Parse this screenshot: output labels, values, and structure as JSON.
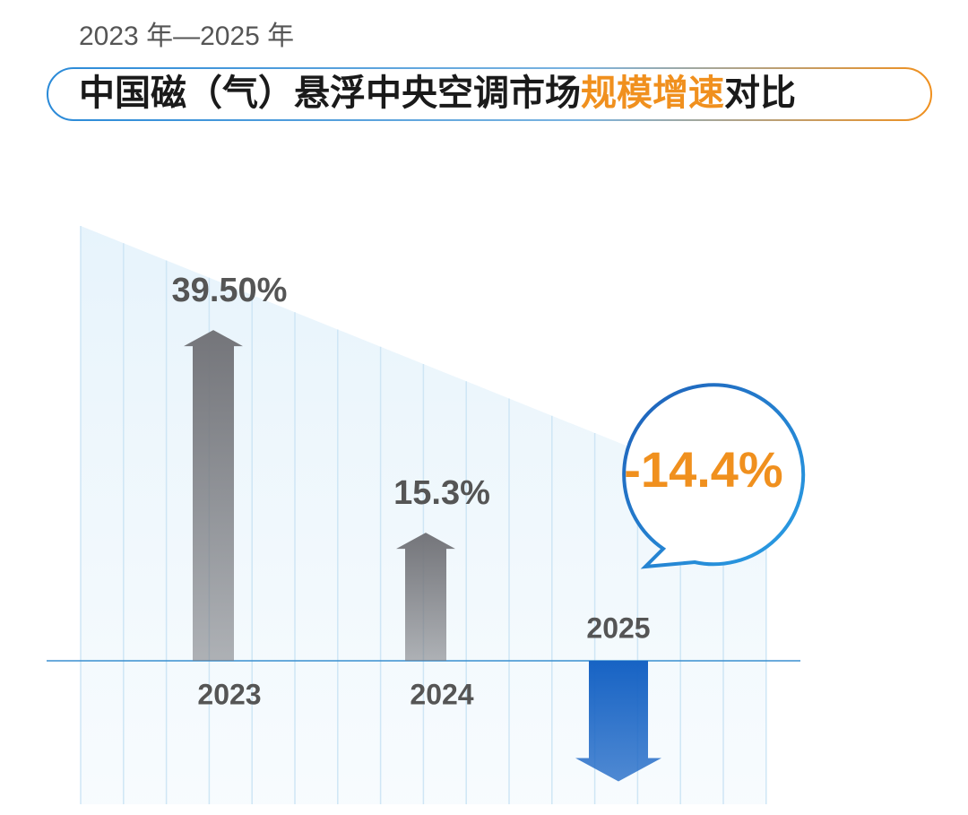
{
  "chart_data": {
    "type": "arrow-bar",
    "subtitle": "2023 年—2025 年",
    "title": [
      "中国磁（气）悬浮中央空调市场",
      "规模增速",
      "对比"
    ],
    "title_highlight_color": "#f0901e",
    "categories": [
      "2023",
      "2024",
      "2025"
    ],
    "values": [
      39.5,
      15.3,
      -14.4
    ],
    "value_labels": [
      "39.50%",
      "15.3%",
      "-14.4%"
    ],
    "up_color": "#74757a",
    "down_color": "#1763c4",
    "highlight_label_color": "#f0901e"
  }
}
